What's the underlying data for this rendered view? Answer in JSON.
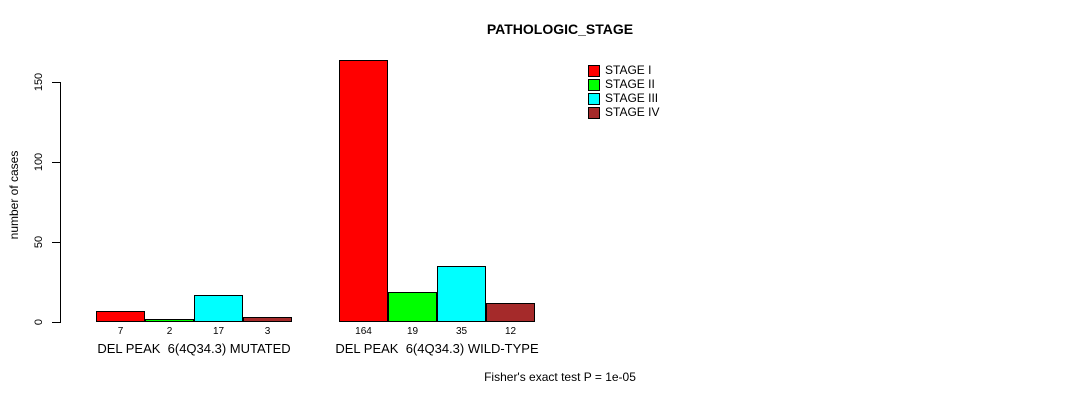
{
  "chart_data": {
    "type": "bar",
    "title": "PATHOLOGIC_STAGE",
    "ylabel": "number of cases",
    "xlabel": "",
    "ylim": [
      0,
      150
    ],
    "yticks": [
      0,
      50,
      100,
      150
    ],
    "grid": false,
    "legend_position": "top-right",
    "bar_borders": "#000000",
    "background": "#ffffff",
    "categories": [
      "DEL PEAK  6(4Q34.3) MUTATED",
      "DEL PEAK  6(4Q34.3) WILD-TYPE"
    ],
    "series": [
      {
        "name": "STAGE I",
        "color": "#ff0000",
        "values": [
          7,
          164
        ]
      },
      {
        "name": "STAGE II",
        "color": "#00ff00",
        "values": [
          2,
          19
        ]
      },
      {
        "name": "STAGE III",
        "color": "#00ffff",
        "values": [
          17,
          35
        ]
      },
      {
        "name": "STAGE IV",
        "color": "#a52a2a",
        "values": [
          3,
          12
        ]
      }
    ],
    "bar_value_labels_shown": true,
    "footnote": "Fisher's exact test P = 1e-05"
  }
}
